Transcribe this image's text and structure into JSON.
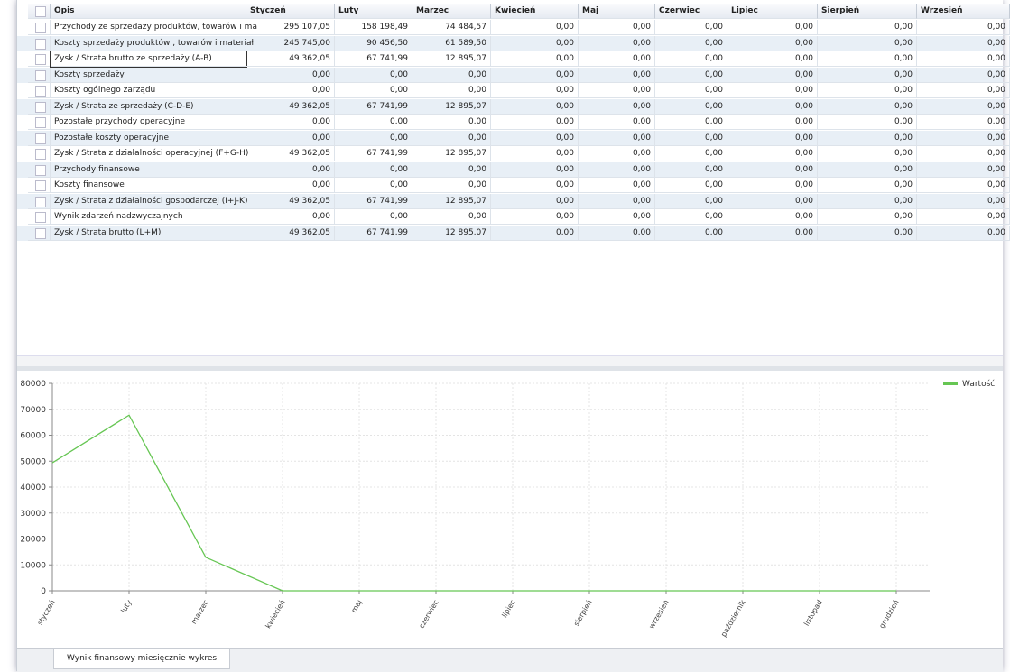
{
  "table": {
    "columns": [
      "Opis",
      "Styczeń",
      "Luty",
      "Marzec",
      "Kwiecień",
      "Maj",
      "Czerwiec",
      "Lipiec",
      "Sierpień",
      "Wrzesień"
    ],
    "rows": [
      [
        "Przychody ze sprzedaży produktów, towarów i ma",
        "295 107,05",
        "158 198,49",
        "74 484,57",
        "0,00",
        "0,00",
        "0,00",
        "0,00",
        "0,00",
        "0,00"
      ],
      [
        "Koszty sprzedaży produktów , towarów i materiał",
        "245 745,00",
        "90 456,50",
        "61 589,50",
        "0,00",
        "0,00",
        "0,00",
        "0,00",
        "0,00",
        "0,00"
      ],
      [
        "Zysk / Strata brutto ze sprzedaży (A-B)",
        "49 362,05",
        "67 741,99",
        "12 895,07",
        "0,00",
        "0,00",
        "0,00",
        "0,00",
        "0,00",
        "0,00"
      ],
      [
        "Koszty sprzedaży",
        "0,00",
        "0,00",
        "0,00",
        "0,00",
        "0,00",
        "0,00",
        "0,00",
        "0,00",
        "0,00"
      ],
      [
        "Koszty ogólnego zarządu",
        "0,00",
        "0,00",
        "0,00",
        "0,00",
        "0,00",
        "0,00",
        "0,00",
        "0,00",
        "0,00"
      ],
      [
        "Zysk / Strata ze sprzedaży (C-D-E)",
        "49 362,05",
        "67 741,99",
        "12 895,07",
        "0,00",
        "0,00",
        "0,00",
        "0,00",
        "0,00",
        "0,00"
      ],
      [
        "Pozostałe przychody operacyjne",
        "0,00",
        "0,00",
        "0,00",
        "0,00",
        "0,00",
        "0,00",
        "0,00",
        "0,00",
        "0,00"
      ],
      [
        "Pozostałe koszty operacyjne",
        "0,00",
        "0,00",
        "0,00",
        "0,00",
        "0,00",
        "0,00",
        "0,00",
        "0,00",
        "0,00"
      ],
      [
        "Zysk / Strata z działalności operacyjnej (F+G-H)",
        "49 362,05",
        "67 741,99",
        "12 895,07",
        "0,00",
        "0,00",
        "0,00",
        "0,00",
        "0,00",
        "0,00"
      ],
      [
        "Przychody finansowe",
        "0,00",
        "0,00",
        "0,00",
        "0,00",
        "0,00",
        "0,00",
        "0,00",
        "0,00",
        "0,00"
      ],
      [
        "Koszty finansowe",
        "0,00",
        "0,00",
        "0,00",
        "0,00",
        "0,00",
        "0,00",
        "0,00",
        "0,00",
        "0,00"
      ],
      [
        "Zysk / Strata z działalności gospodarczej (I+J-K)",
        "49 362,05",
        "67 741,99",
        "12 895,07",
        "0,00",
        "0,00",
        "0,00",
        "0,00",
        "0,00",
        "0,00"
      ],
      [
        "Wynik zdarzeń nadzwyczajnych",
        "0,00",
        "0,00",
        "0,00",
        "0,00",
        "0,00",
        "0,00",
        "0,00",
        "0,00",
        "0,00"
      ],
      [
        "Zysk / Strata brutto (L+M)",
        "49 362,05",
        "67 741,99",
        "12 895,07",
        "0,00",
        "0,00",
        "0,00",
        "0,00",
        "0,00",
        "0,00"
      ]
    ]
  },
  "chart_data": {
    "type": "line",
    "categories": [
      "styczeń",
      "luty",
      "marzec",
      "kwiecień",
      "maj",
      "czerwiec",
      "lipiec",
      "sierpień",
      "wrzesień",
      "październik",
      "listopad",
      "grudzień"
    ],
    "series": [
      {
        "name": "Wartość",
        "color": "#66c653",
        "values": [
          49362.05,
          67741.99,
          12895.07,
          0,
          0,
          0,
          0,
          0,
          0,
          0,
          0,
          0
        ]
      }
    ],
    "ylim": [
      0,
      80000
    ],
    "yticks": [
      0,
      10000,
      20000,
      30000,
      40000,
      50000,
      60000,
      70000,
      80000
    ],
    "grid": true,
    "legend": "top-right"
  },
  "tab": {
    "label": "Wynik finansowy miesięcznie wykres"
  }
}
